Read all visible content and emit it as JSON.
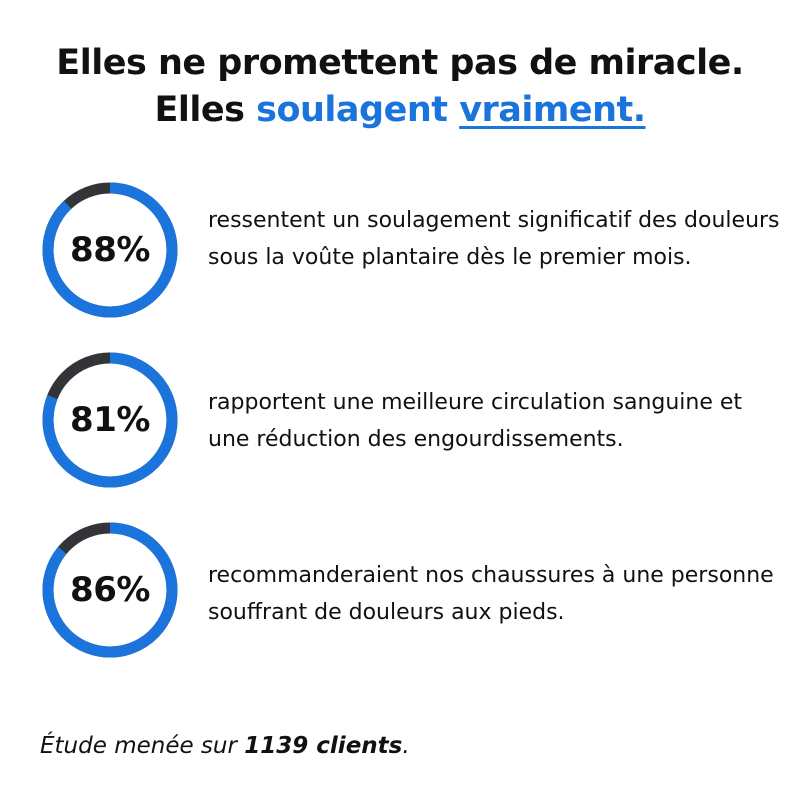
{
  "headline": {
    "line1": "Elles ne promettent pas de miracle.",
    "line2_prefix": "Elles ",
    "line2_accent": "soulagent",
    "line2_underlined": "vraiment."
  },
  "colors": {
    "accent": "#1b74dc",
    "track": "#333438"
  },
  "stats": [
    {
      "percent": 88,
      "label": "88%",
      "text": "ressentent un soulagement significatif des douleurs sous la voûte plantaire dès le premier mois."
    },
    {
      "percent": 81,
      "label": "81%",
      "text": "rapportent une meilleure circulation sanguine et une réduction des engourdissements."
    },
    {
      "percent": 86,
      "label": "86%",
      "text": "recommanderaient nos chaussures à une personne souffrant de douleurs aux pieds."
    }
  ],
  "footer": {
    "prefix": "Étude menée sur ",
    "bold": "1139 clients",
    "suffix": "."
  }
}
